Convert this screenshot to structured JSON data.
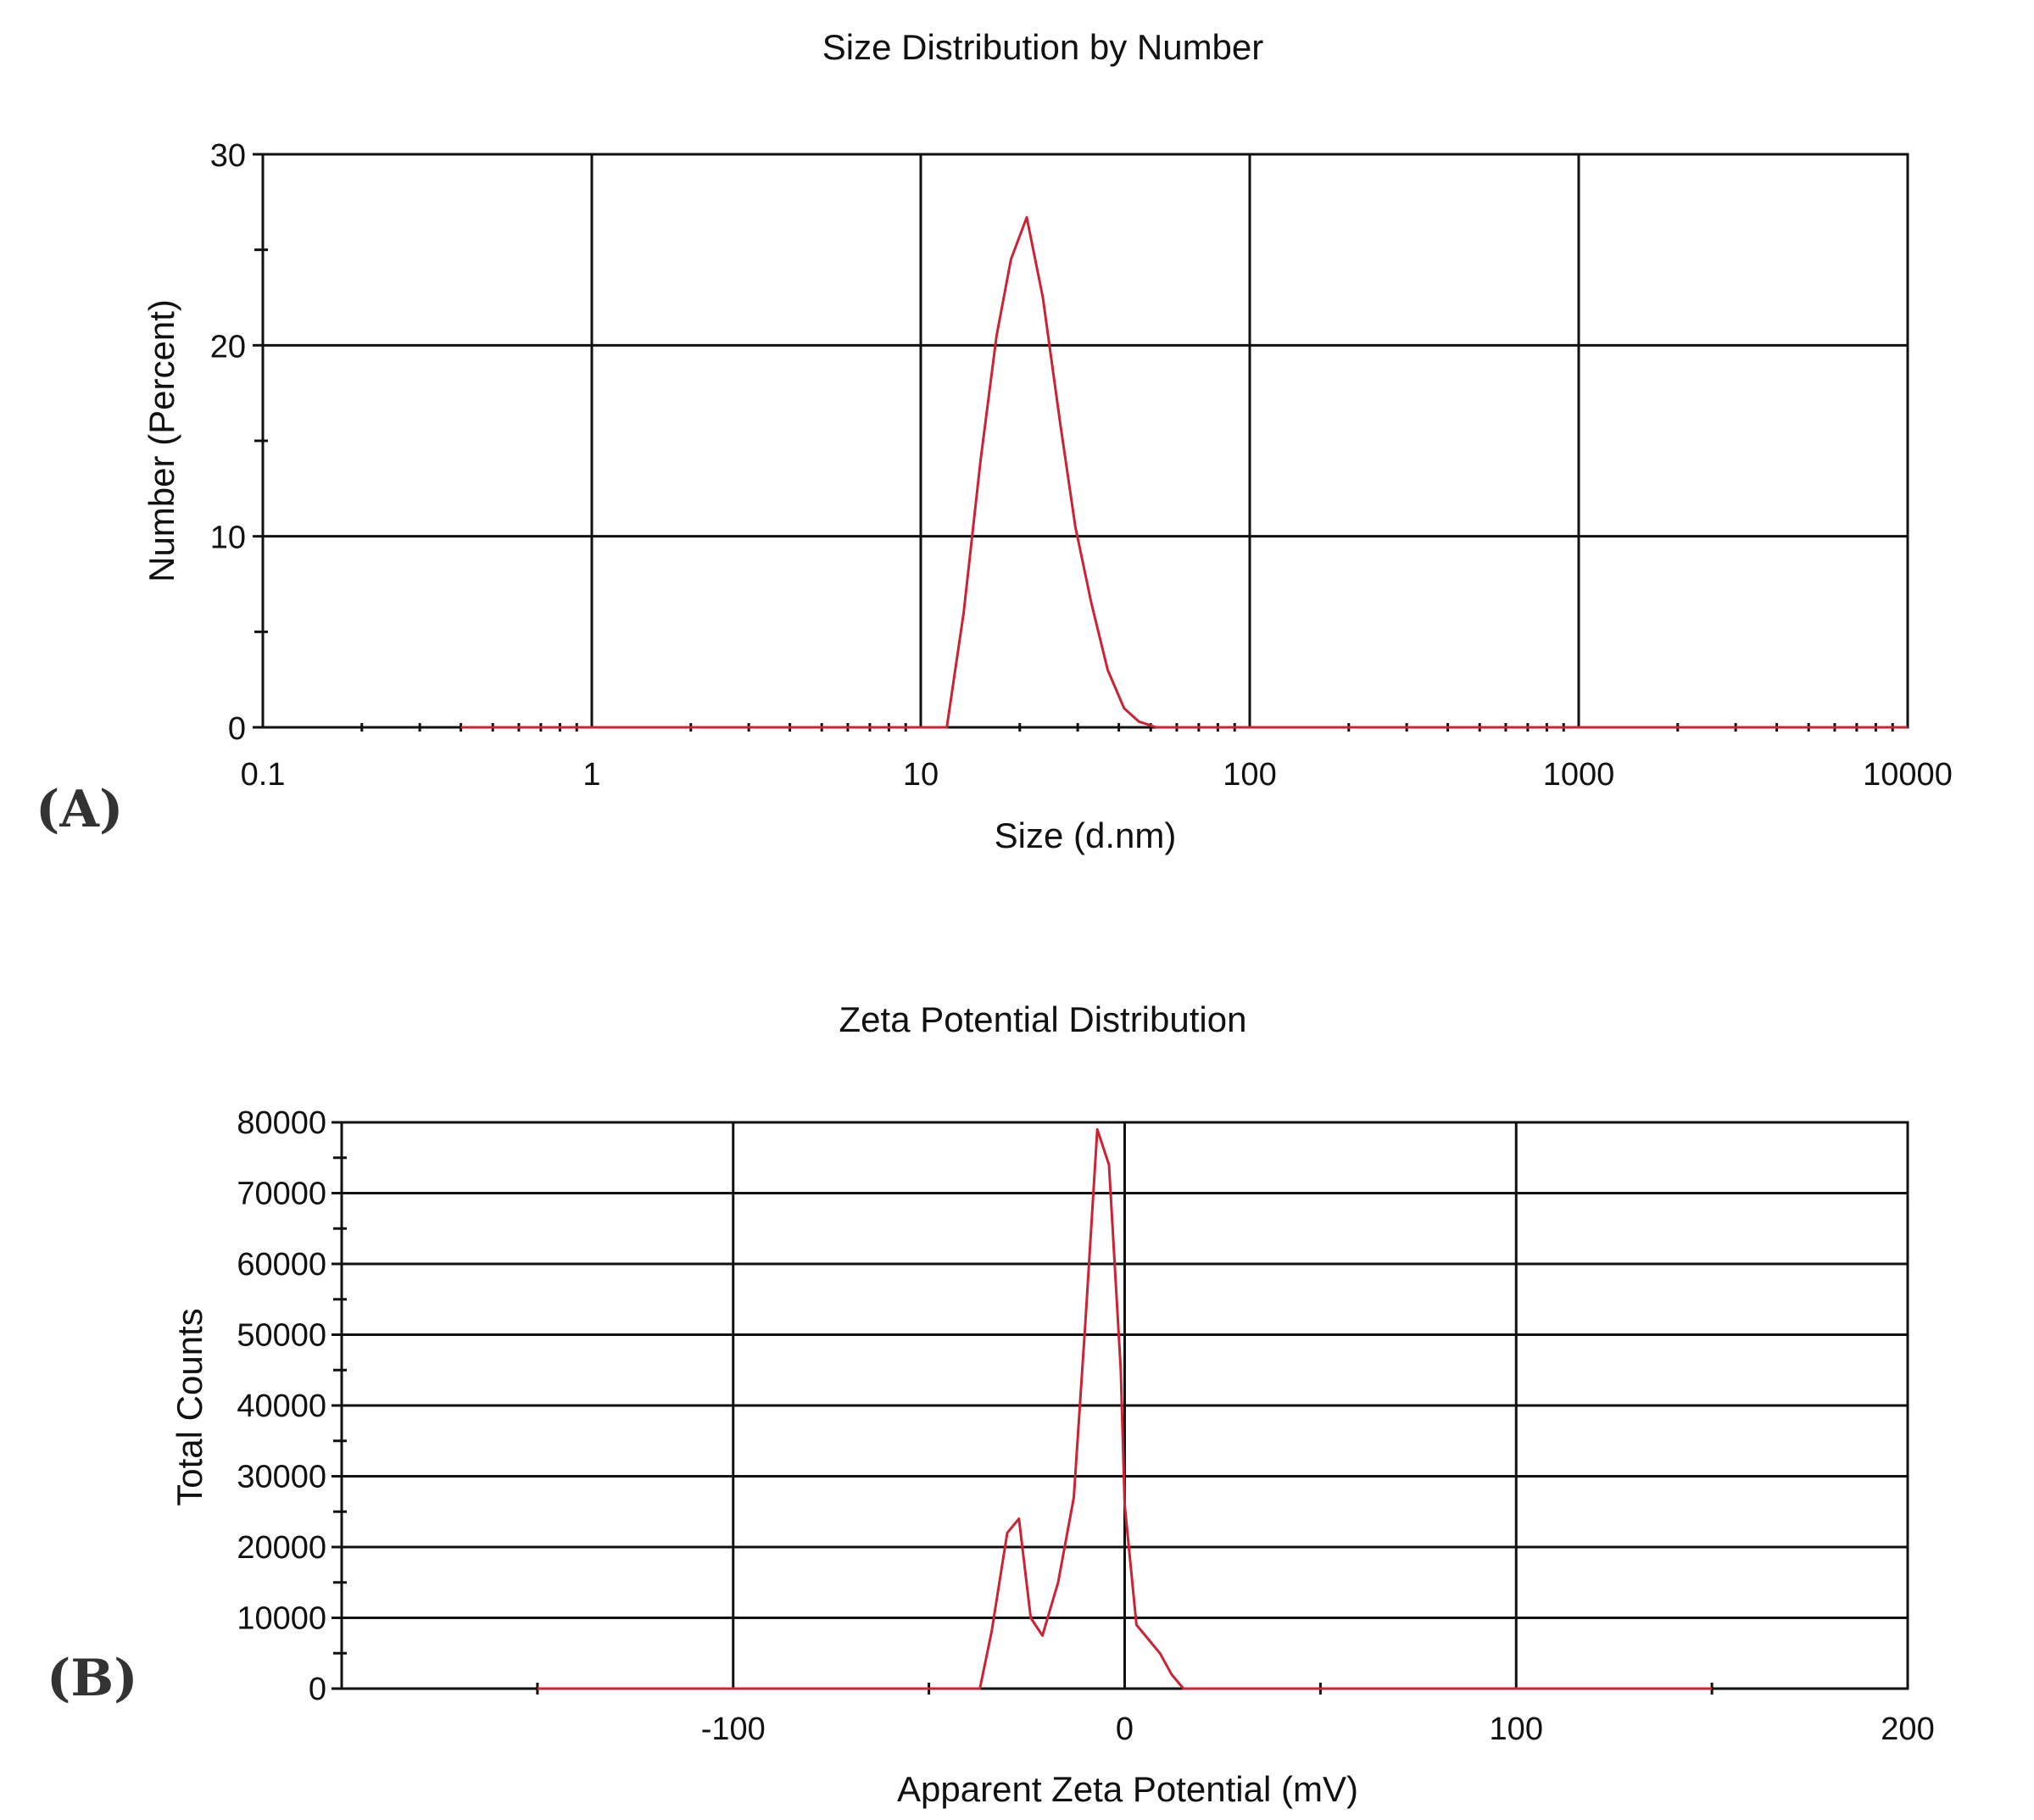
{
  "panels": {
    "a_label": "(A)",
    "b_label": "(B)"
  },
  "chart_data": [
    {
      "type": "line",
      "title": "Size Distribution by Number",
      "xlabel": "Size (d.nm)",
      "ylabel": "Number (Percent)",
      "xscale": "log",
      "xlim": [
        0.1,
        10000
      ],
      "ylim": [
        0,
        30
      ],
      "xticks": [
        0.1,
        1,
        10,
        100,
        1000,
        10000
      ],
      "xtick_labels": [
        "0.1",
        "1",
        "10",
        "100",
        "1000",
        "10000"
      ],
      "yticks": [
        0,
        10,
        20,
        30
      ],
      "ytick_labels": [
        "0",
        "10",
        "20",
        "30"
      ],
      "grid": true,
      "color": "#cc2233",
      "series": [
        {
          "x": [
            0.4,
            12.0,
            13.5,
            15.2,
            17.0,
            18.8,
            21.0,
            23.5,
            26.5,
            29.5,
            33.0,
            37.0,
            41.5,
            46.0,
            52.0,
            10000
          ],
          "y": [
            0,
            0,
            6.0,
            14.0,
            20.5,
            24.5,
            26.7,
            22.5,
            16.0,
            10.5,
            6.5,
            3.0,
            1.0,
            0.3,
            0,
            0
          ]
        }
      ]
    },
    {
      "type": "line",
      "title": "Zeta Potential Distribution",
      "xlabel": "Apparent Zeta Potential (mV)",
      "ylabel": "Total Counts",
      "xlim": [
        -200,
        200
      ],
      "ylim": [
        0,
        80000
      ],
      "xticks": [
        -100,
        0,
        100,
        200
      ],
      "xtick_labels": [
        "-100",
        "0",
        "100",
        "200"
      ],
      "yticks": [
        0,
        10000,
        20000,
        30000,
        40000,
        50000,
        60000,
        70000,
        80000
      ],
      "ytick_labels": [
        "0",
        "10000",
        "20000",
        "30000",
        "40000",
        "50000",
        "60000",
        "70000",
        "80000"
      ],
      "grid": true,
      "color": "#cc2233",
      "series": [
        {
          "x": [
            -150,
            -37,
            -34,
            -30,
            -27,
            -24,
            -21,
            -17,
            -13,
            -10,
            -7,
            -4,
            -1,
            0,
            3,
            6,
            9,
            12,
            15,
            150
          ],
          "y": [
            0,
            0,
            8000,
            22000,
            24000,
            10000,
            7500,
            15000,
            27000,
            52000,
            79000,
            74000,
            45000,
            26000,
            9000,
            7000,
            5000,
            2000,
            0,
            0
          ]
        }
      ]
    }
  ]
}
